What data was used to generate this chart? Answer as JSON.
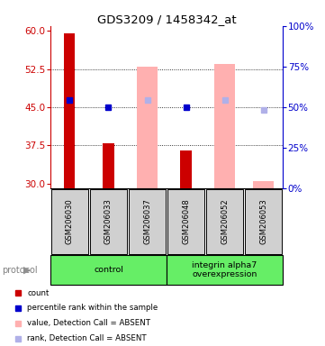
{
  "title": "GDS3209 / 1458342_at",
  "samples": [
    "GSM206030",
    "GSM206033",
    "GSM206037",
    "GSM206048",
    "GSM206052",
    "GSM206053"
  ],
  "ylim_left": [
    29,
    61
  ],
  "ylim_right": [
    0,
    100
  ],
  "yticks_left": [
    30,
    37.5,
    45,
    52.5,
    60
  ],
  "yticks_right": [
    0,
    25,
    50,
    75,
    100
  ],
  "count_values": [
    59.5,
    38.0,
    null,
    36.5,
    null,
    null
  ],
  "percentile_values": [
    46.5,
    45.0,
    null,
    45.0,
    null,
    null
  ],
  "absent_value_bars": [
    null,
    null,
    53.0,
    null,
    53.5,
    30.5
  ],
  "absent_rank_values": [
    null,
    null,
    46.5,
    null,
    46.5,
    44.5
  ],
  "count_color": "#cc0000",
  "percentile_color": "#0000cc",
  "absent_value_color": "#ffb0b0",
  "absent_rank_color": "#b0b0e8",
  "left_axis_color": "#cc0000",
  "right_axis_color": "#0000cc",
  "group_color": "#66ee66",
  "sample_box_color": "#d0d0d0",
  "ybase": 29,
  "groups_def": [
    [
      0,
      2,
      "control"
    ],
    [
      3,
      5,
      "integrin alpha7\noverexpression"
    ]
  ]
}
